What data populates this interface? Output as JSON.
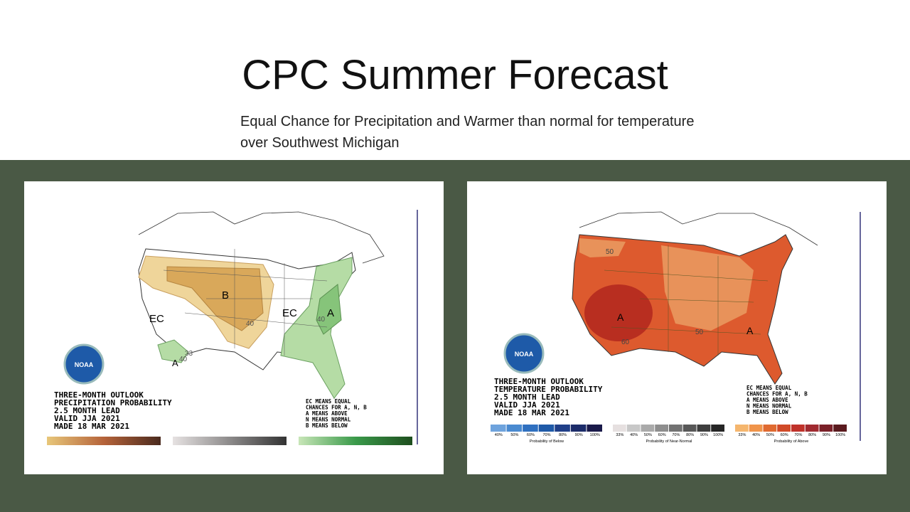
{
  "title": "CPC Summer Forecast",
  "subtitle": [
    "Equal Chance for Precipitation and Warmer than normal for temperature",
    "over Southwest Michigan"
  ],
  "maps": [
    {
      "logo": "NOAA",
      "region_labels": [
        "EC",
        "B",
        "EC",
        "A",
        "A"
      ],
      "contour_labels": [
        "40",
        "33",
        "40",
        "40"
      ],
      "caption": [
        "THREE-MONTH OUTLOOK",
        "PRECIPITATION PROBABILITY",
        "2.5 MONTH LEAD",
        "VALID JJA 2021",
        "MADE 18 MAR 2021"
      ],
      "legend": [
        "EC MEANS EQUAL",
        "CHANCES FOR A, N, B",
        "A MEANS ABOVE",
        "N MEANS NORMAL",
        "B MEANS BELOW"
      ]
    },
    {
      "logo": "NOAA",
      "region_labels": [
        "A",
        "A"
      ],
      "contour_labels": [
        "50",
        "60",
        "50"
      ],
      "caption": [
        "THREE-MONTH OUTLOOK",
        "TEMPERATURE PROBABILITY",
        "2.5 MONTH LEAD",
        "VALID JJA 2021",
        "MADE 18 MAR 2021"
      ],
      "legend": [
        "EC MEANS EQUAL",
        "CHANCES FOR A, N, B",
        "A MEANS ABOVE",
        "N MEANS NORMAL",
        "B MEANS BELOW"
      ],
      "scales": [
        {
          "name": "Probability of Below",
          "ticks": [
            "40%",
            "50%",
            "60%",
            "70%",
            "80%",
            "90%",
            "100%"
          ]
        },
        {
          "name": "Probability of Near-Normal",
          "ticks": [
            "33%",
            "40%",
            "50%",
            "60%",
            "70%",
            "80%",
            "90%",
            "100%"
          ]
        },
        {
          "name": "Probability of Above",
          "ticks": [
            "33%",
            "40%",
            "50%",
            "60%",
            "70%",
            "80%",
            "90%",
            "100%"
          ]
        }
      ]
    }
  ]
}
